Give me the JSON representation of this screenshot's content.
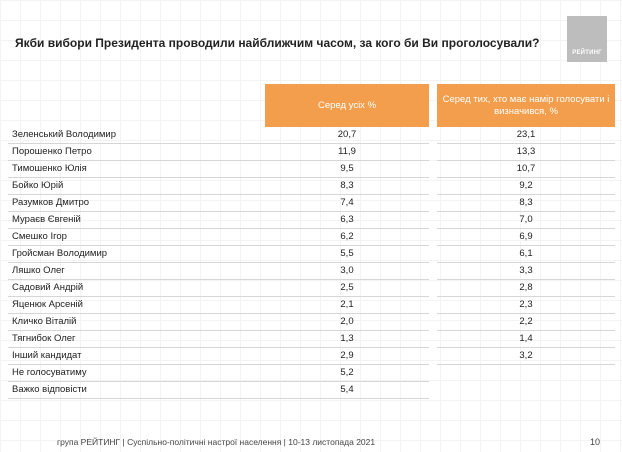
{
  "title": "Якби вибори Президента проводили найближчим часом, за кого би Ви проголосували?",
  "logo": {
    "text": "РЕЙТИНГ"
  },
  "table": {
    "headers": {
      "col1": "Серед усіх %",
      "col2": "Серед тих, хто має намір голосувати і визначився, %"
    },
    "rows": [
      {
        "name": "Зеленський Володимир",
        "all": "20,7",
        "decided": "23,1"
      },
      {
        "name": "Порошенко Петро",
        "all": "11,9",
        "decided": "13,3"
      },
      {
        "name": "Тимошенко Юлія",
        "all": "9,5",
        "decided": "10,7"
      },
      {
        "name": "Бойко Юрій",
        "all": "8,3",
        "decided": "9,2"
      },
      {
        "name": "Разумков Дмитро",
        "all": "7,4",
        "decided": "8,3"
      },
      {
        "name": "Мураєв Євгеній",
        "all": "6,3",
        "decided": "7,0"
      },
      {
        "name": "Смешко Ігор",
        "all": "6,2",
        "decided": "6,9"
      },
      {
        "name": "Гройсман Володимир",
        "all": "5,5",
        "decided": "6,1"
      },
      {
        "name": "Ляшко Олег",
        "all": "3,0",
        "decided": "3,3"
      },
      {
        "name": "Садовий Андрій",
        "all": "2,5",
        "decided": "2,8"
      },
      {
        "name": "Яценюк Арсеній",
        "all": "2,1",
        "decided": "2,3"
      },
      {
        "name": "Кличко Віталій",
        "all": "2,0",
        "decided": "2,2"
      },
      {
        "name": "Тягнибок Олег",
        "all": "1,3",
        "decided": "1,4"
      },
      {
        "name": "Інший кандидат",
        "all": "2,9",
        "decided": "3,2"
      },
      {
        "name": "Не голосуватиму",
        "all": "5,2",
        "decided": ""
      },
      {
        "name": "Важко відповісти",
        "all": "5,4",
        "decided": ""
      }
    ]
  },
  "footer": "група РЕЙТИНГ | Суспільно-політичні настрої населення | 10-13 листопада 2021",
  "page_number": "10",
  "colors": {
    "header_orange": "#f29e4c",
    "logo_gray": "#bdbdbd"
  }
}
